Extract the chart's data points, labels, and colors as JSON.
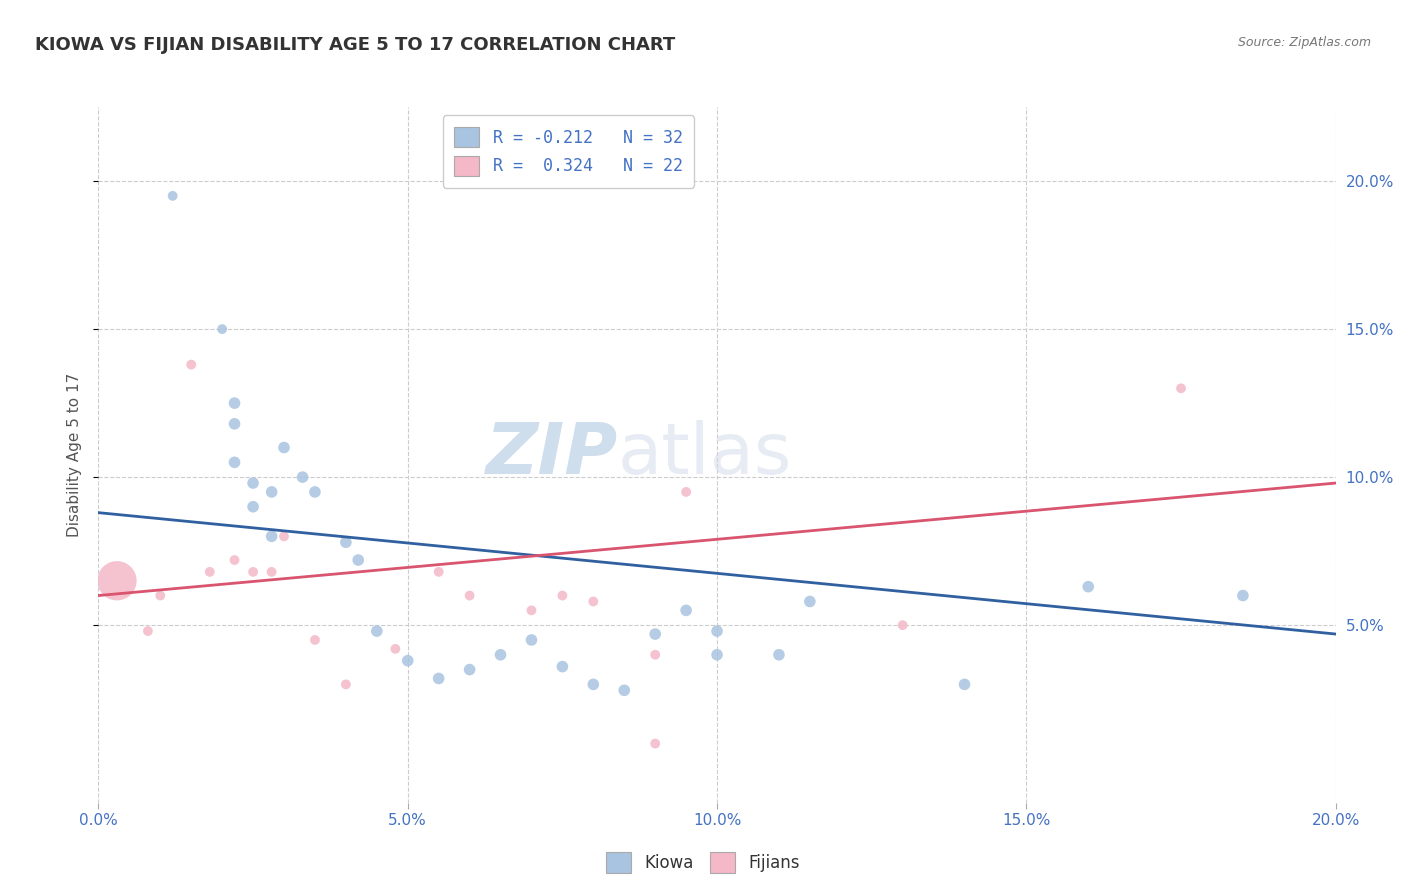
{
  "title": "KIOWA VS FIJIAN DISABILITY AGE 5 TO 17 CORRELATION CHART",
  "source": "Source: ZipAtlas.com",
  "ylabel": "Disability Age 5 to 17",
  "xlim": [
    0.0,
    0.2
  ],
  "ylim": [
    -0.01,
    0.225
  ],
  "kiowa_color": "#a8c4e0",
  "fijian_color": "#f4b8c8",
  "kiowa_line_color": "#3060a0",
  "fijian_line_color": "#d9546e",
  "kiowa_points_x": [
    0.012,
    0.02,
    0.022,
    0.022,
    0.022,
    0.025,
    0.025,
    0.028,
    0.028,
    0.03,
    0.033,
    0.035,
    0.04,
    0.042,
    0.045,
    0.05,
    0.055,
    0.06,
    0.065,
    0.07,
    0.075,
    0.08,
    0.085,
    0.09,
    0.095,
    0.1,
    0.1,
    0.11,
    0.115,
    0.14,
    0.16,
    0.185
  ],
  "kiowa_points_y": [
    0.195,
    0.15,
    0.125,
    0.118,
    0.105,
    0.098,
    0.09,
    0.095,
    0.08,
    0.11,
    0.1,
    0.095,
    0.078,
    0.072,
    0.048,
    0.038,
    0.032,
    0.035,
    0.04,
    0.045,
    0.036,
    0.03,
    0.028,
    0.047,
    0.055,
    0.04,
    0.048,
    0.04,
    0.058,
    0.03,
    0.063,
    0.06
  ],
  "kiowa_sizes": [
    50,
    50,
    70,
    70,
    70,
    70,
    70,
    70,
    70,
    70,
    70,
    70,
    70,
    70,
    70,
    70,
    70,
    70,
    70,
    70,
    70,
    70,
    70,
    70,
    70,
    70,
    70,
    70,
    70,
    70,
    70,
    70
  ],
  "fijian_points_x": [
    0.003,
    0.008,
    0.01,
    0.015,
    0.018,
    0.022,
    0.025,
    0.028,
    0.03,
    0.035,
    0.04,
    0.048,
    0.055,
    0.06,
    0.07,
    0.075,
    0.08,
    0.09,
    0.095,
    0.13,
    0.175,
    0.09
  ],
  "fijian_points_y": [
    0.065,
    0.048,
    0.06,
    0.138,
    0.068,
    0.072,
    0.068,
    0.068,
    0.08,
    0.045,
    0.03,
    0.042,
    0.068,
    0.06,
    0.055,
    0.06,
    0.058,
    0.04,
    0.095,
    0.05,
    0.13,
    0.01
  ],
  "fijian_sizes": [
    800,
    50,
    50,
    50,
    50,
    50,
    50,
    50,
    50,
    50,
    50,
    50,
    50,
    50,
    50,
    50,
    50,
    50,
    50,
    50,
    50,
    50
  ],
  "kiowa_trend_x": [
    0.0,
    0.2
  ],
  "kiowa_trend_y": [
    0.088,
    0.047
  ],
  "fijian_trend_x": [
    0.0,
    0.2
  ],
  "fijian_trend_y": [
    0.06,
    0.098
  ],
  "watermark_zip": "ZIP",
  "watermark_atlas": "atlas",
  "background_color": "#ffffff",
  "grid_color": "#cccccc",
  "title_color": "#333333",
  "axis_color": "#4472c4",
  "legend_text_color": "#4472c4"
}
